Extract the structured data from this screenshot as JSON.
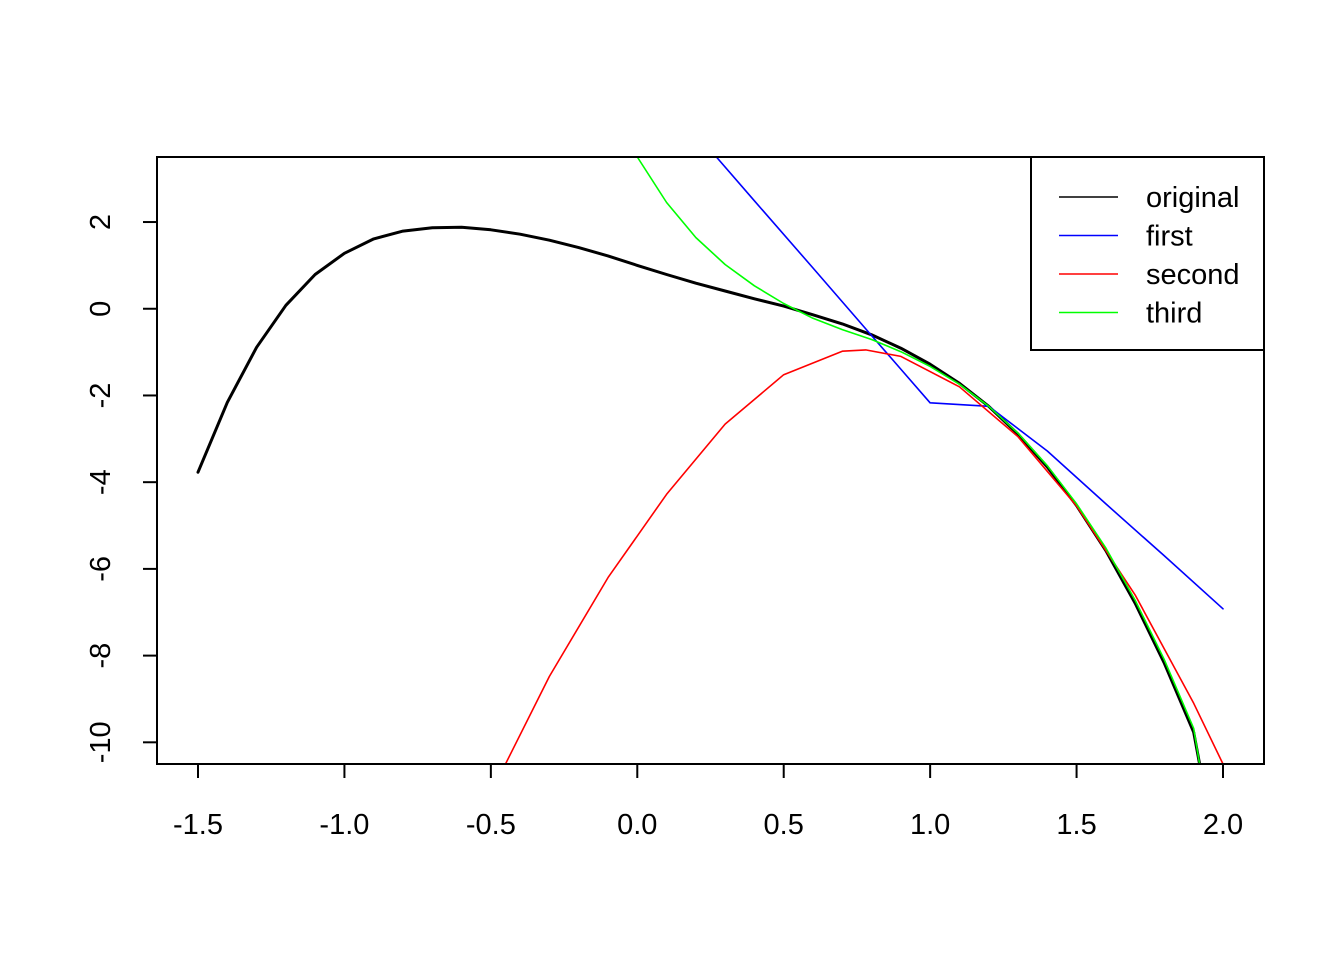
{
  "chart_data": {
    "type": "line",
    "title": "",
    "xlabel": "",
    "ylabel": "",
    "xlim": [
      -1.64,
      2.14
    ],
    "ylim": [
      -10.5,
      3.5
    ],
    "x_ticks": [
      {
        "value": -1.5,
        "label": "-1.5"
      },
      {
        "value": -1.0,
        "label": "-1.0"
      },
      {
        "value": -0.5,
        "label": "-0.5"
      },
      {
        "value": 0.0,
        "label": "0.0"
      },
      {
        "value": 0.5,
        "label": "0.5"
      },
      {
        "value": 1.0,
        "label": "1.0"
      },
      {
        "value": 1.5,
        "label": "1.5"
      },
      {
        "value": 2.0,
        "label": "2.0"
      }
    ],
    "y_ticks": [
      {
        "value": 2,
        "label": "2"
      },
      {
        "value": 0,
        "label": "0"
      },
      {
        "value": -2,
        "label": "-2"
      },
      {
        "value": -4,
        "label": "-4"
      },
      {
        "value": -6,
        "label": "-6"
      },
      {
        "value": -8,
        "label": "-8"
      },
      {
        "value": -10,
        "label": "-10"
      }
    ],
    "grid": false,
    "legend_position": "top-right",
    "series": [
      {
        "name": "original",
        "color": "#000000",
        "x": [
          -1.5,
          -1.4,
          -1.3,
          -1.2,
          -1.1,
          -1.0,
          -0.9,
          -0.8,
          -0.7,
          -0.6,
          -0.5,
          -0.4,
          -0.3,
          -0.2,
          -0.1,
          0.0,
          0.1,
          0.2,
          0.3,
          0.4,
          0.5,
          0.6,
          0.7,
          0.8,
          0.9,
          1.0,
          1.1,
          1.2,
          1.3,
          1.4,
          1.5,
          1.6,
          1.7,
          1.8,
          1.9,
          1.92
        ],
        "y": [
          -3.77,
          -2.16,
          -0.89,
          0.08,
          0.79,
          1.28,
          1.61,
          1.79,
          1.87,
          1.88,
          1.82,
          1.72,
          1.58,
          1.41,
          1.22,
          1.0,
          0.79,
          0.59,
          0.41,
          0.23,
          0.06,
          -0.14,
          -0.35,
          -0.6,
          -0.91,
          -1.28,
          -1.72,
          -2.25,
          -2.89,
          -3.65,
          -4.54,
          -5.58,
          -6.79,
          -8.18,
          -9.77,
          -10.5
        ]
      },
      {
        "name": "first",
        "color": "#0000ff",
        "x": [
          0.27,
          0.4,
          0.6,
          0.8,
          1.0,
          1.2,
          1.4,
          1.6,
          1.8,
          2.0
        ],
        "y": [
          3.5,
          2.49,
          0.94,
          -0.62,
          -2.17,
          -2.25,
          -3.28,
          -4.5,
          -5.7,
          -6.92
        ]
      },
      {
        "name": "second",
        "color": "#ff0000",
        "x": [
          -0.45,
          -0.3,
          -0.1,
          0.1,
          0.3,
          0.5,
          0.7,
          0.78,
          0.9,
          1.1,
          1.3,
          1.5,
          1.7,
          1.9,
          2.0
        ],
        "y": [
          -10.5,
          -8.48,
          -6.2,
          -4.28,
          -2.66,
          -1.52,
          -0.98,
          -0.95,
          -1.1,
          -1.8,
          -2.95,
          -4.55,
          -6.6,
          -9.1,
          -10.5
        ]
      },
      {
        "name": "third",
        "color": "#00ff00",
        "x": [
          0.0,
          0.1,
          0.2,
          0.3,
          0.4,
          0.5,
          0.6,
          0.7,
          0.8,
          0.9,
          1.0,
          1.1,
          1.2,
          1.3,
          1.4,
          1.5,
          1.6,
          1.7,
          1.8,
          1.9,
          1.92
        ],
        "y": [
          3.5,
          2.45,
          1.64,
          1.02,
          0.53,
          0.12,
          -0.22,
          -0.48,
          -0.71,
          -0.99,
          -1.33,
          -1.74,
          -2.25,
          -2.87,
          -3.62,
          -4.5,
          -5.52,
          -6.72,
          -8.1,
          -9.68,
          -10.5
        ]
      }
    ]
  }
}
